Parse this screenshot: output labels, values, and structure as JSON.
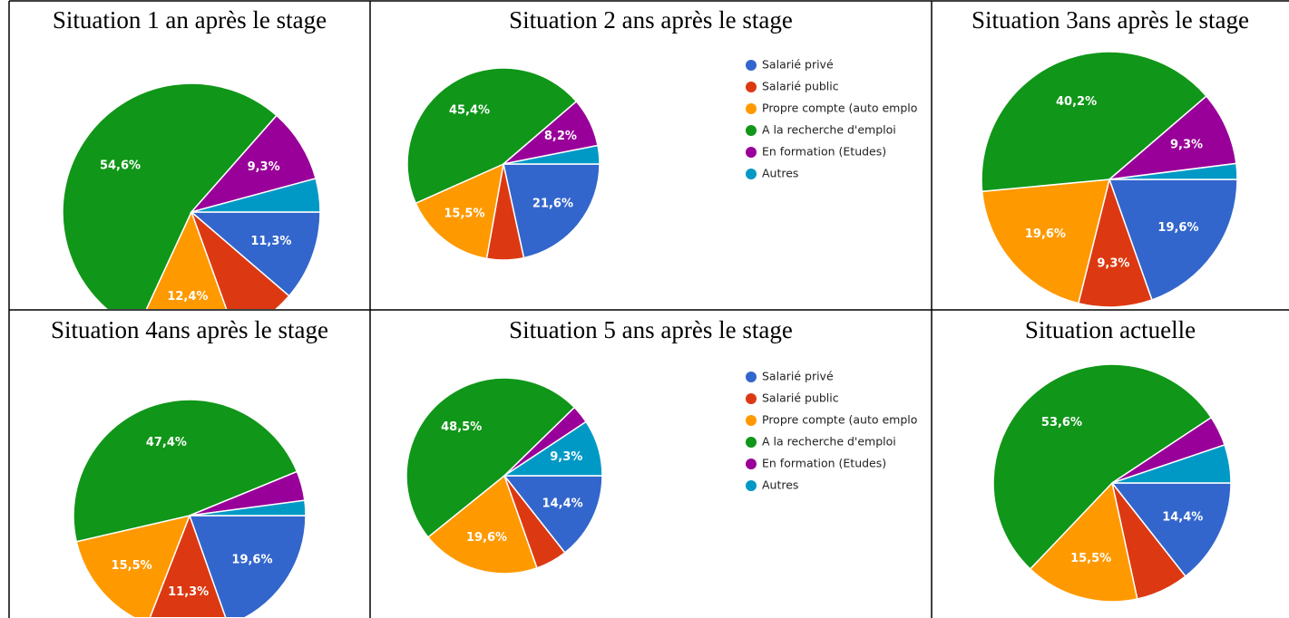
{
  "chart_data": [
    {
      "type": "pie",
      "title": "Situation 1 an après le stage",
      "categories": [
        null,
        null,
        null,
        null,
        null,
        null
      ],
      "values": [
        11.3,
        8.2,
        12.4,
        54.6,
        9.3,
        4.2
      ],
      "value_labels": [
        "11,3%",
        null,
        "12,4%",
        "54,6%",
        "9,3%",
        null
      ],
      "colors": [
        "#3366cc",
        "#dc3912",
        "#ff9900",
        "#109618",
        "#990099",
        "#0099c6"
      ],
      "legend": false
    },
    {
      "type": "pie",
      "title": "Situation 2 ans après le stage",
      "categories": [
        "Salarié privé",
        "Salarié public",
        "Propre compte (auto emplo",
        "A la recherche d'emploi",
        "En formation (Etudes)",
        "Autres"
      ],
      "values": [
        21.6,
        6.2,
        15.5,
        45.4,
        8.2,
        3.1
      ],
      "value_labels": [
        "21,6%",
        null,
        "15,5%",
        "45,4%",
        "8,2%",
        null
      ],
      "colors": [
        "#3366cc",
        "#dc3912",
        "#ff9900",
        "#109618",
        "#990099",
        "#0099c6"
      ],
      "legend": true
    },
    {
      "type": "pie",
      "title": "Situation 3ans après le stage",
      "categories": [
        null,
        null,
        null,
        null,
        null,
        null
      ],
      "values": [
        19.6,
        9.3,
        19.6,
        40.2,
        9.3,
        2.0
      ],
      "value_labels": [
        "19,6%",
        "9,3%",
        "19,6%",
        "40,2%",
        "9,3%",
        null
      ],
      "colors": [
        "#3366cc",
        "#dc3912",
        "#ff9900",
        "#109618",
        "#990099",
        "#0099c6"
      ],
      "legend": false
    },
    {
      "type": "pie",
      "title": "Situation 4ans après le stage",
      "categories": [
        null,
        null,
        null,
        null,
        null,
        null
      ],
      "values": [
        19.6,
        11.3,
        15.5,
        47.4,
        4.1,
        2.1
      ],
      "value_labels": [
        "19,6%",
        "11,3%",
        "15,5%",
        "47,4%",
        null,
        null
      ],
      "colors": [
        "#3366cc",
        "#dc3912",
        "#ff9900",
        "#109618",
        "#990099",
        "#0099c6"
      ],
      "legend": false
    },
    {
      "type": "pie",
      "title": "Situation 5 ans après le stage",
      "categories": [
        "Salarié privé",
        "Salarié public",
        "Propre compte (auto emplo",
        "A la recherche d'emploi",
        "En formation (Etudes)",
        "Autres"
      ],
      "values": [
        14.4,
        5.2,
        19.6,
        48.5,
        3.0,
        9.3
      ],
      "value_labels": [
        "14,4%",
        null,
        "19,6%",
        "48,5%",
        null,
        "9,3%"
      ],
      "colors": [
        "#3366cc",
        "#dc3912",
        "#ff9900",
        "#109618",
        "#990099",
        "#0099c6"
      ],
      "legend": true
    },
    {
      "type": "pie",
      "title": "Situation actuelle",
      "categories": [
        null,
        null,
        null,
        null,
        null,
        null
      ],
      "values": [
        14.4,
        7.2,
        15.5,
        53.6,
        4.1,
        5.2
      ],
      "value_labels": [
        "14,4%",
        null,
        "15,5%",
        "53,6%",
        null,
        null
      ],
      "colors": [
        "#3366cc",
        "#dc3912",
        "#ff9900",
        "#109618",
        "#990099",
        "#0099c6"
      ],
      "legend": false
    }
  ]
}
